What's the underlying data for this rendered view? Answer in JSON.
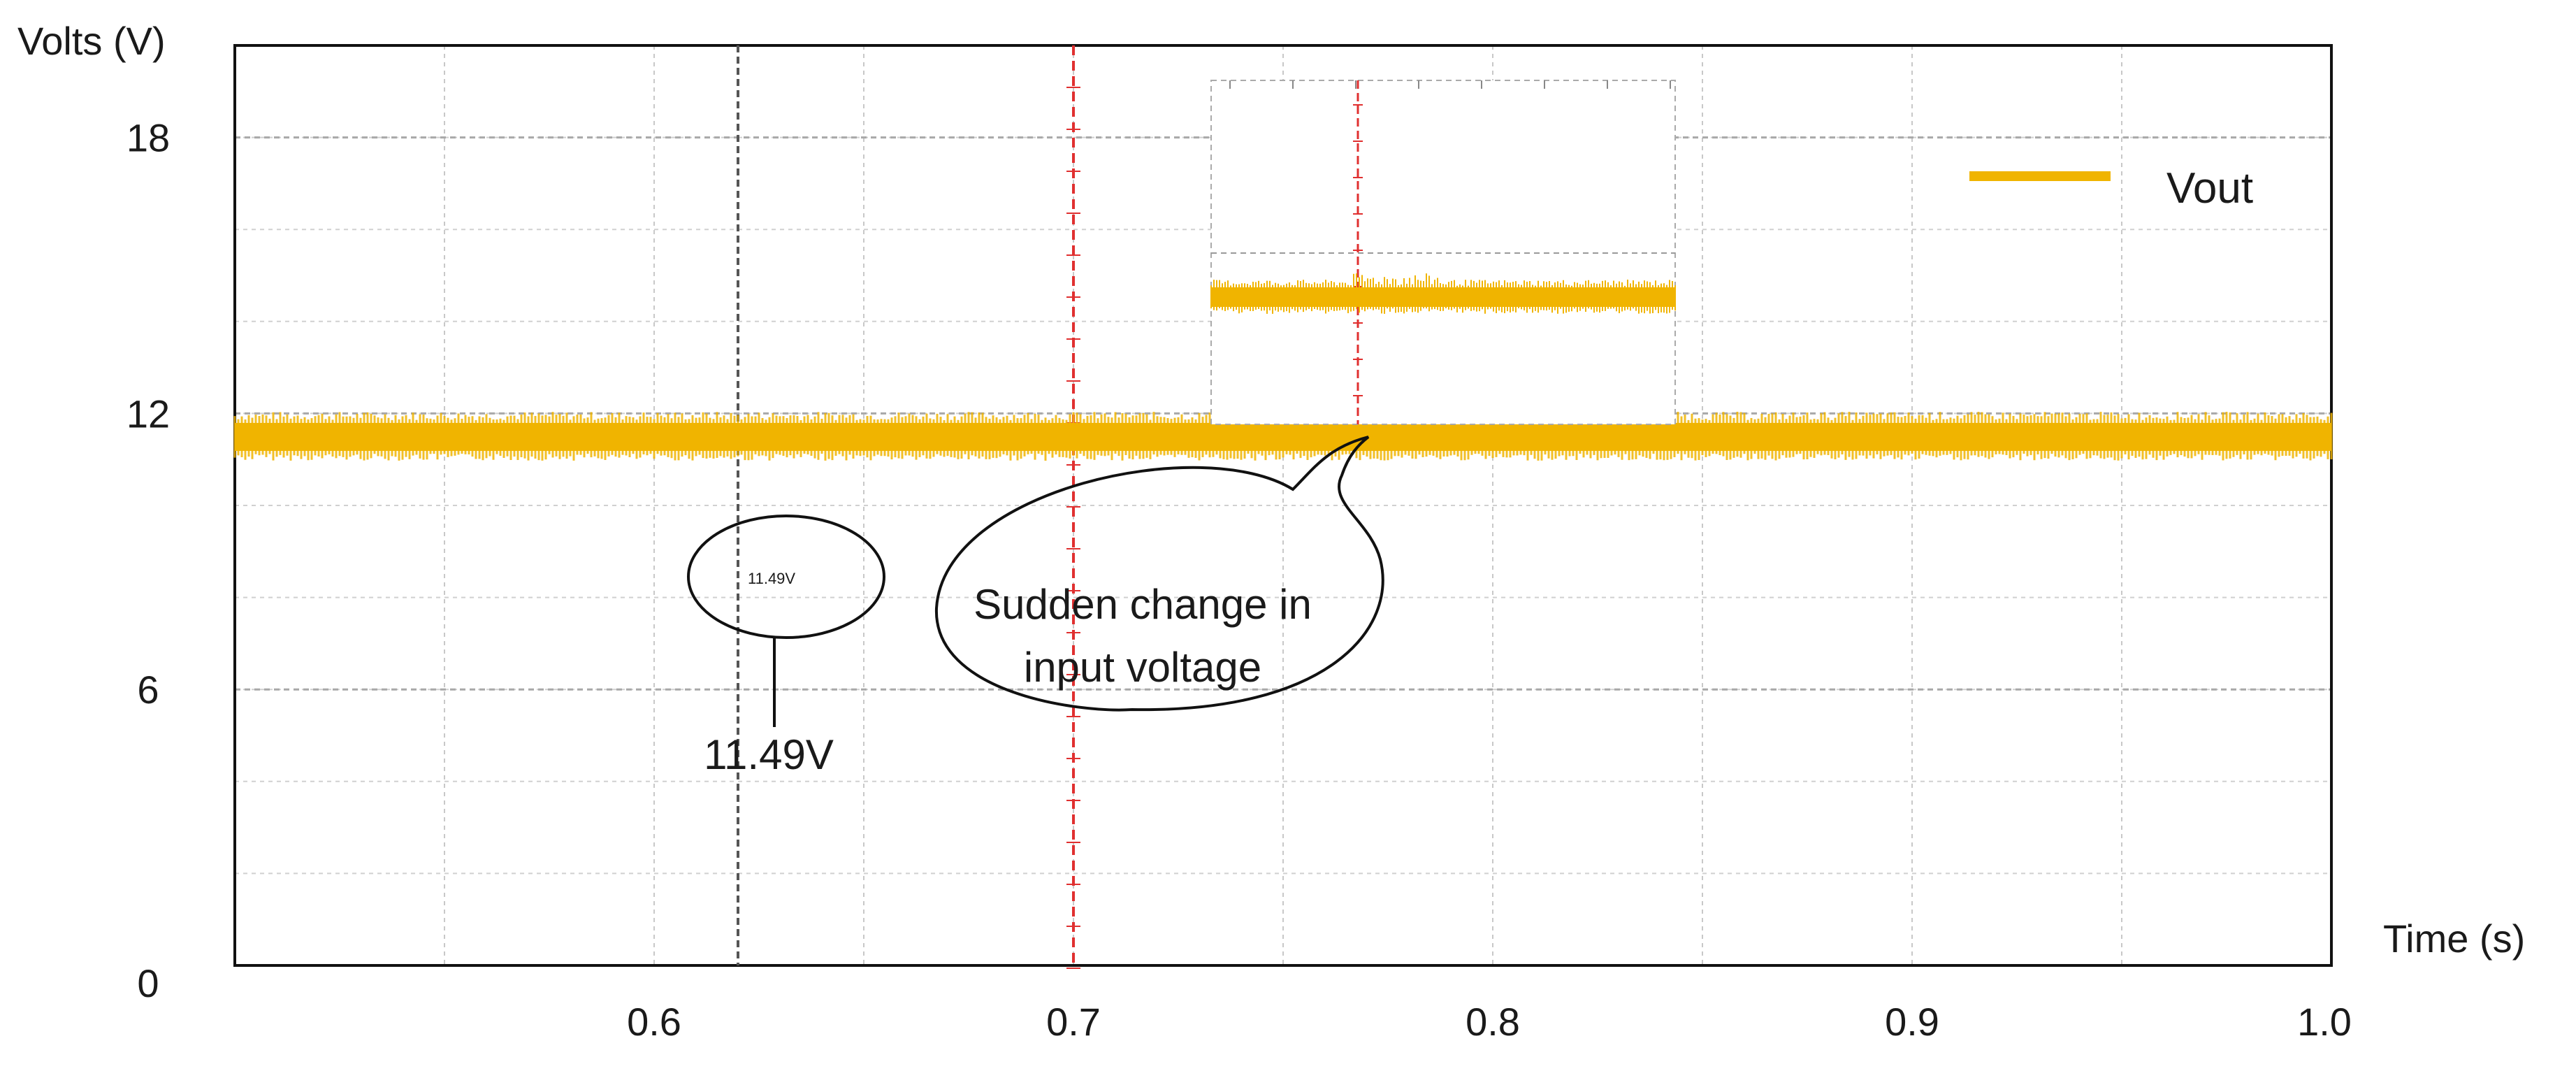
{
  "chart_data": {
    "type": "line",
    "xlabel": "Time (s)",
    "ylabel": "Volts (V)",
    "xlim": [
      0.5,
      1.0
    ],
    "ylim": [
      0,
      20
    ],
    "x_ticks": [
      0.6,
      0.7,
      0.8,
      0.9,
      1.0
    ],
    "x_tick_labels": [
      "0.6",
      "0.7",
      "0.8",
      "0.9",
      "1.0"
    ],
    "y_ticks": [
      0,
      6,
      12,
      18
    ],
    "y_tick_labels": [
      "0",
      "6",
      "12",
      "18"
    ],
    "grid": true,
    "legend": {
      "placement": "top-right",
      "entries": [
        "Vout"
      ]
    },
    "series": [
      {
        "name": "Vout",
        "color": "#f0b400",
        "x": [
          0.5,
          0.7,
          1.0
        ],
        "y": [
          11.49,
          11.49,
          11.49
        ]
      }
    ],
    "markers": [
      {
        "x": 0.62,
        "color": "#555555"
      },
      {
        "x": 0.7,
        "color": "#e03030"
      }
    ],
    "annotations": {
      "voltage_reading": "11.49V",
      "callout": [
        "Sudden change in",
        "input voltage"
      ],
      "scope_readout": "11.49V"
    },
    "inset": {
      "x_center": 0.7,
      "y": 18,
      "series_color": "#f0b400",
      "marker_color": "#e03030"
    }
  }
}
